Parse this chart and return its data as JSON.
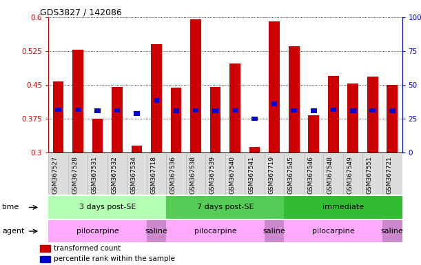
{
  "title": "GDS3827 / 142086",
  "samples": [
    "GSM367527",
    "GSM367528",
    "GSM367531",
    "GSM367532",
    "GSM367534",
    "GSM367718",
    "GSM367536",
    "GSM367538",
    "GSM367539",
    "GSM367540",
    "GSM367541",
    "GSM367719",
    "GSM367545",
    "GSM367546",
    "GSM367548",
    "GSM367549",
    "GSM367551",
    "GSM367721"
  ],
  "red_values": [
    0.457,
    0.528,
    0.375,
    0.445,
    0.315,
    0.54,
    0.443,
    0.595,
    0.445,
    0.497,
    0.312,
    0.59,
    0.535,
    0.382,
    0.47,
    0.453,
    0.468,
    0.45
  ],
  "blue_values": [
    0.395,
    0.395,
    0.392,
    0.393,
    0.386,
    0.415,
    0.392,
    0.393,
    0.392,
    0.393,
    0.375,
    0.408,
    0.393,
    0.392,
    0.395,
    0.392,
    0.393,
    0.392
  ],
  "y_min": 0.3,
  "y_max": 0.6,
  "y_ticks_left": [
    0.3,
    0.375,
    0.45,
    0.525,
    0.6
  ],
  "y_ticks_right": [
    0,
    25,
    50,
    75,
    100
  ],
  "time_groups": [
    {
      "label": "3 days post-SE",
      "start": 0,
      "end": 6,
      "color": "#b3ffb3"
    },
    {
      "label": "7 days post-SE",
      "start": 6,
      "end": 12,
      "color": "#55cc55"
    },
    {
      "label": "immediate",
      "start": 12,
      "end": 18,
      "color": "#33bb33"
    }
  ],
  "agent_groups": [
    {
      "label": "pilocarpine",
      "start": 0,
      "end": 5,
      "color": "#ffaaff"
    },
    {
      "label": "saline",
      "start": 5,
      "end": 6,
      "color": "#cc88cc"
    },
    {
      "label": "pilocarpine",
      "start": 6,
      "end": 11,
      "color": "#ffaaff"
    },
    {
      "label": "saline",
      "start": 11,
      "end": 12,
      "color": "#cc88cc"
    },
    {
      "label": "pilocarpine",
      "start": 12,
      "end": 17,
      "color": "#ffaaff"
    },
    {
      "label": "saline",
      "start": 17,
      "end": 18,
      "color": "#cc88cc"
    }
  ],
  "bar_color": "#cc0000",
  "blue_color": "#0000cc",
  "left_axis_color": "#cc0000",
  "right_axis_color": "#0000cc",
  "xtick_bg_color": "#dddddd"
}
